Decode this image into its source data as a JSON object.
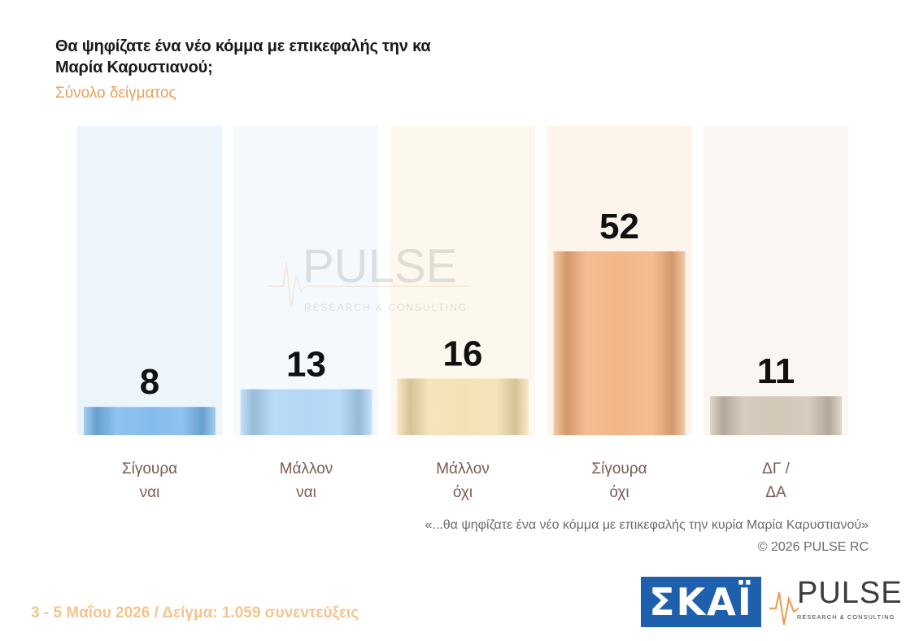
{
  "title": "Θα ψηφίζατε ένα νέο κόμμα με επικεφαλής την κα Μαρία Καρυστιανού;",
  "subtitle": "Σύνολο δείγματος",
  "watermark": {
    "word": "PULSE",
    "sub": "RESEARCH & CONSULTING"
  },
  "footnote": "«...θα ψηφίζατε ένα νέο κόμμα με επικεφαλής την κυρία Μαρία Καρυστιανού»",
  "copyright": "©  2026  PULSE RC",
  "footer": "3 - 5  Μαΐου 2026  /  Δείγμα:  1.059 συνεντεύξεις",
  "logos": {
    "skai": "ΣΚΑΪ",
    "pulse": "PULSE",
    "pulse_sub": "RESEARCH & CONSULTING"
  },
  "chart_data": {
    "type": "bar",
    "categories": [
      [
        "Σίγουρα",
        "ναι"
      ],
      [
        "Μάλλον",
        "ναι"
      ],
      [
        "Μάλλον",
        "όχι"
      ],
      [
        "Σίγουρα",
        "όχι"
      ],
      [
        "ΔΓ /",
        "ΔΑ"
      ]
    ],
    "values": [
      8,
      13,
      16,
      52,
      11
    ],
    "colors": [
      "#74b3ea",
      "#a9d2f4",
      "#f2deaa",
      "#f0ad78",
      "#cdbfae"
    ],
    "column_bg": [
      "#edf5fc",
      "#f4f9fd",
      "#fdf8ee",
      "#fdf4ec",
      "#fbf6f1"
    ],
    "title": "Θα ψηφίζατε ένα νέο κόμμα με επικεφαλής την κα Μαρία Καρυστιανού;",
    "ylim": [
      0,
      52
    ],
    "grid": false
  }
}
